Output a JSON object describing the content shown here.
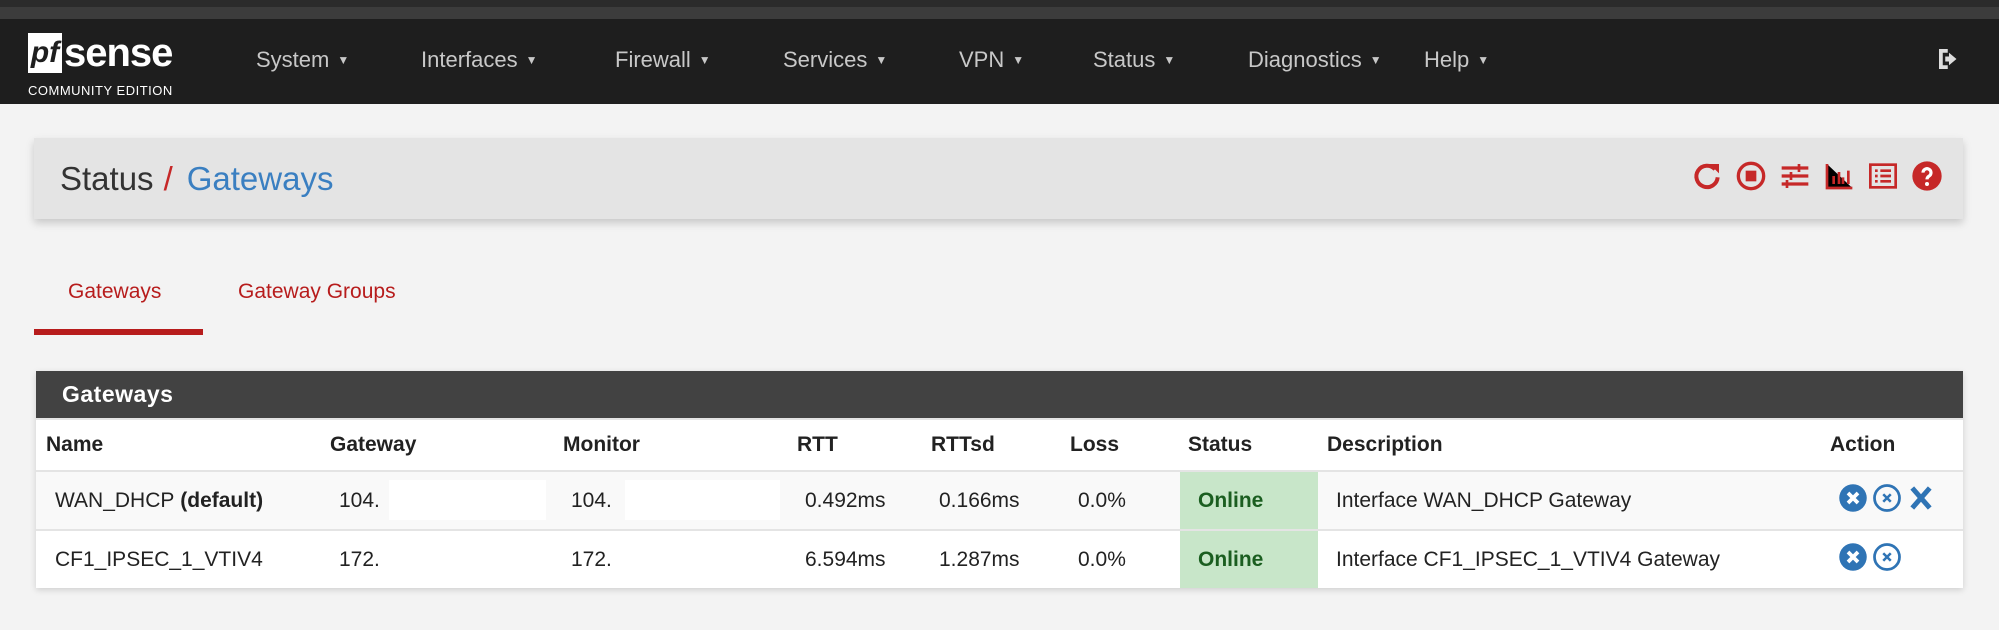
{
  "brand": {
    "logo_text": "pfsense",
    "edition": "COMMUNITY EDITION"
  },
  "nav": [
    "System",
    "Interfaces",
    "Firewall",
    "Services",
    "VPN",
    "Status",
    "Diagnostics",
    "Help"
  ],
  "breadcrumb": {
    "parent": "Status",
    "separator": "/",
    "current": "Gateways"
  },
  "header_icons": [
    "reload-icon",
    "stop-icon",
    "settings-sliders-icon",
    "chart-icon",
    "log-list-icon",
    "help-icon"
  ],
  "tabs": [
    {
      "label": "Gateways",
      "active": true
    },
    {
      "label": "Gateway Groups",
      "active": false
    }
  ],
  "panel": {
    "title": "Gateways",
    "columns": [
      "Name",
      "Gateway",
      "Monitor",
      "RTT",
      "RTTsd",
      "Loss",
      "Status",
      "Description",
      "Action"
    ],
    "rows": [
      {
        "name": "WAN_DHCP",
        "name_suffix": "(default)",
        "gateway": "104.",
        "monitor": "104.",
        "rtt": "0.492ms",
        "rttsd": "0.166ms",
        "loss": "0.0%",
        "status": "Online",
        "description": "Interface WAN_DHCP Gateway",
        "actions": [
          "kill-states-icon",
          "disable-icon",
          "delete-icon"
        ]
      },
      {
        "name": "CF1_IPSEC_1_VTIV4",
        "name_suffix": "",
        "gateway": "172.",
        "monitor": "172.",
        "rtt": "6.594ms",
        "rttsd": "1.287ms",
        "loss": "0.0%",
        "status": "Online",
        "description": "Interface CF1_IPSEC_1_VTIV4 Gateway",
        "actions": [
          "kill-states-icon",
          "disable-icon"
        ]
      }
    ]
  },
  "colors": {
    "navbar": "#1e1e1e",
    "accent_red": "#b71c1c",
    "link_blue": "#3a7fc1",
    "online_bg": "#c8e6c9",
    "panel_header": "#424242"
  }
}
